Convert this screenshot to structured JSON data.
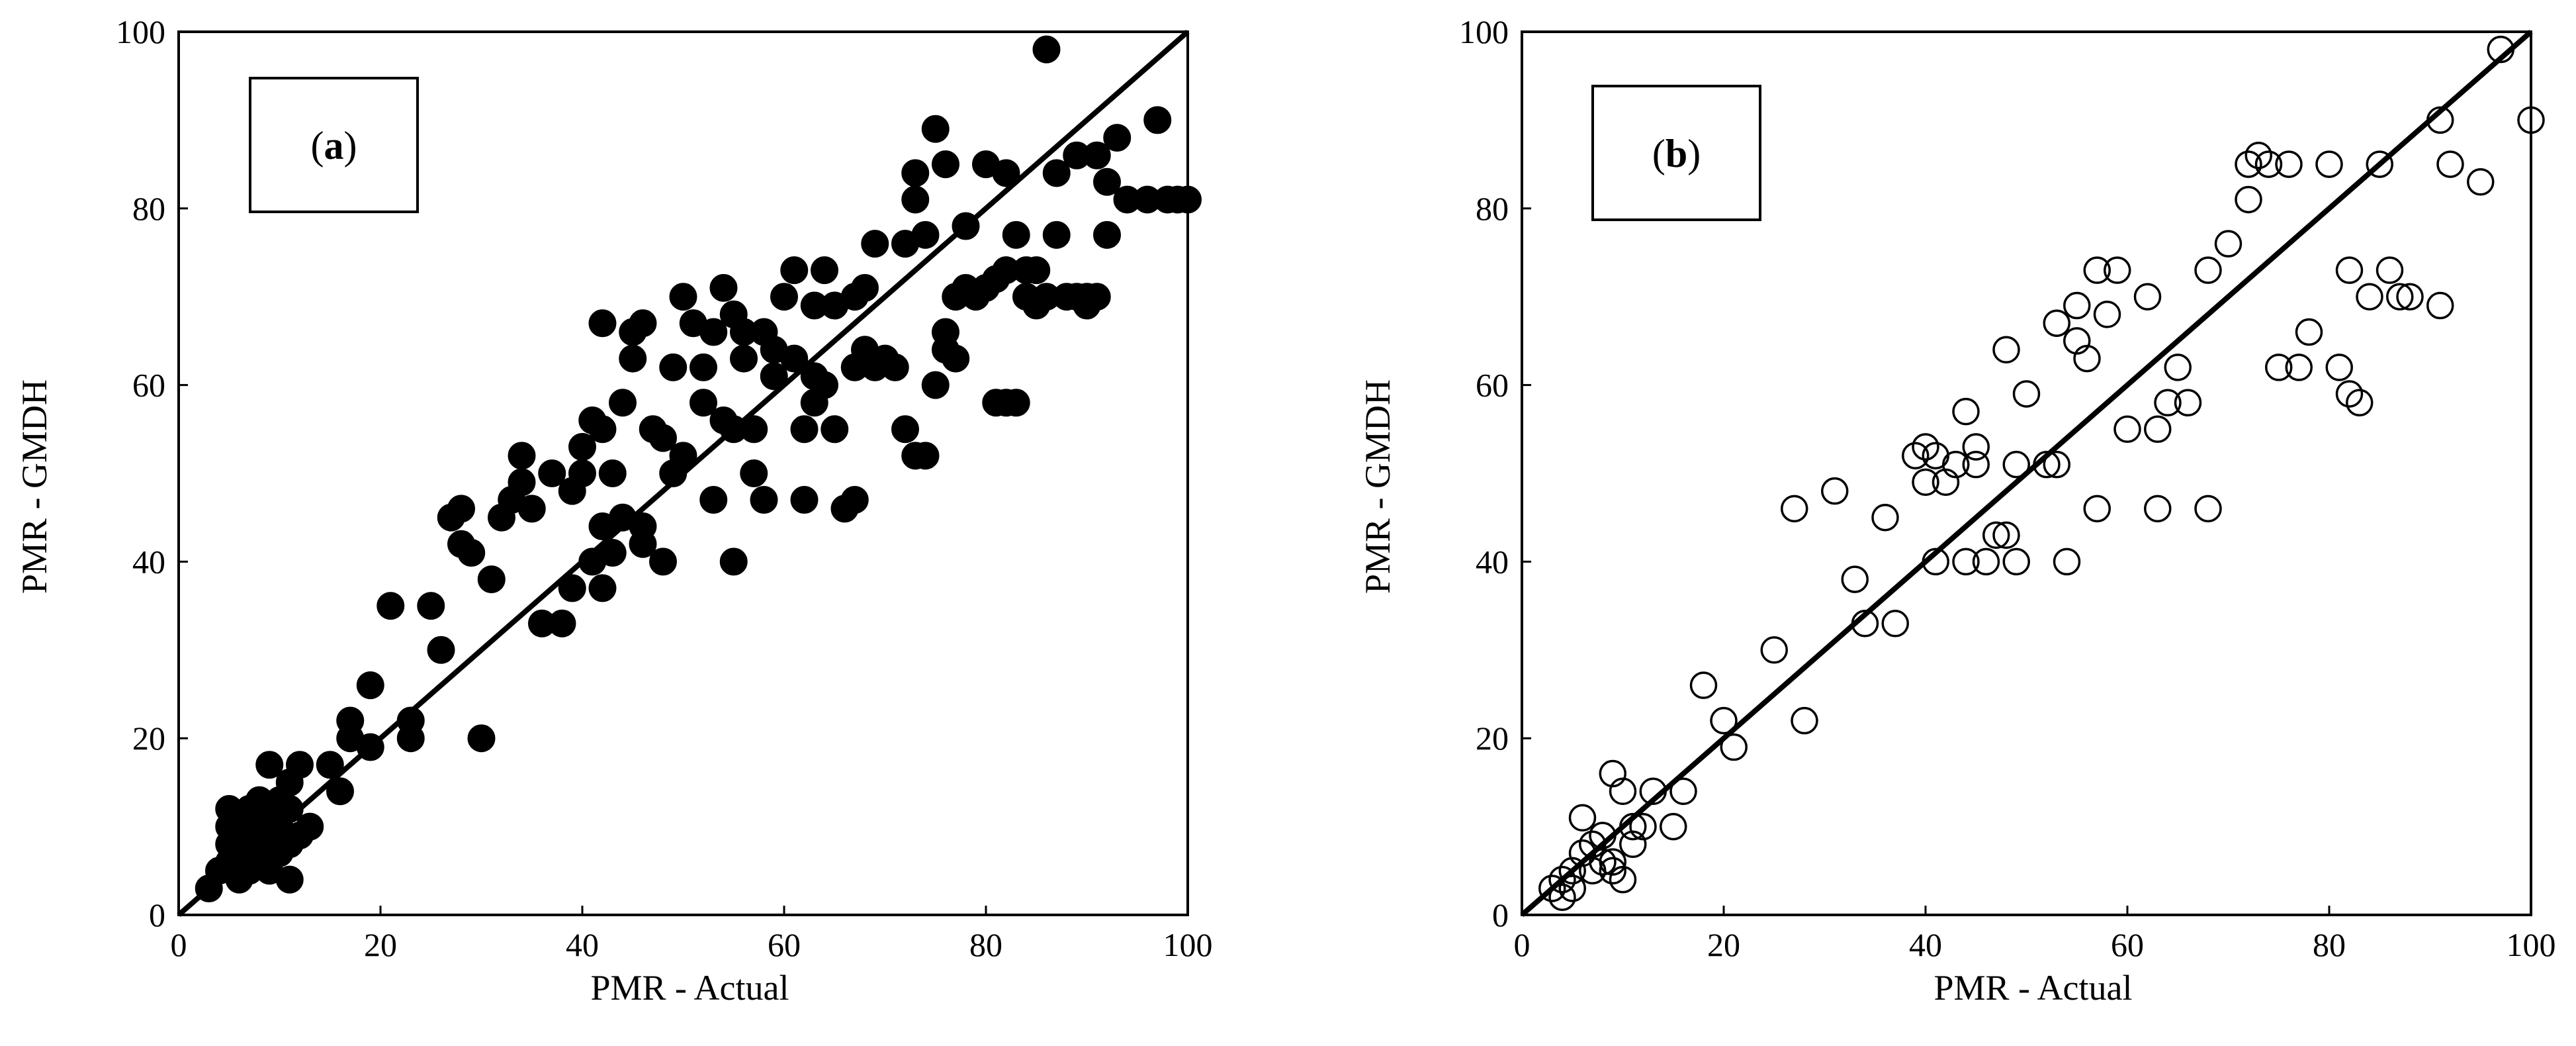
{
  "figure": {
    "panels": [
      {
        "id": "a",
        "label_open": "(",
        "label_letter": "a",
        "label_close": ")"
      },
      {
        "id": "b",
        "label_open": "(",
        "label_letter": "b",
        "label_close": ")"
      }
    ]
  },
  "chart_data": [
    {
      "type": "scatter",
      "panel": "a",
      "marker": "filled-circle",
      "title": "",
      "xlabel": "PMR - Actual",
      "ylabel": "PMR - GMDH",
      "xlim": [
        0,
        100
      ],
      "ylim": [
        0,
        100
      ],
      "xticks": [
        0,
        20,
        40,
        60,
        80,
        100
      ],
      "yticks": [
        0,
        20,
        40,
        60,
        80,
        100
      ],
      "reference_line": {
        "x": [
          0,
          100
        ],
        "y": [
          0,
          100
        ]
      },
      "points": [
        [
          3,
          3
        ],
        [
          4,
          5
        ],
        [
          5,
          6
        ],
        [
          5,
          8
        ],
        [
          5,
          10
        ],
        [
          5,
          12
        ],
        [
          6,
          4
        ],
        [
          6,
          7
        ],
        [
          6,
          9
        ],
        [
          6,
          11
        ],
        [
          7,
          5
        ],
        [
          7,
          8
        ],
        [
          7,
          10
        ],
        [
          7,
          12
        ],
        [
          8,
          6
        ],
        [
          8,
          8
        ],
        [
          8,
          10
        ],
        [
          8,
          13
        ],
        [
          9,
          5
        ],
        [
          9,
          9
        ],
        [
          9,
          12
        ],
        [
          9,
          17
        ],
        [
          10,
          7
        ],
        [
          10,
          10
        ],
        [
          10,
          13
        ],
        [
          11,
          4
        ],
        [
          11,
          8
        ],
        [
          11,
          12
        ],
        [
          11,
          15
        ],
        [
          12,
          9
        ],
        [
          12,
          17
        ],
        [
          13,
          10
        ],
        [
          15,
          17
        ],
        [
          16,
          14
        ],
        [
          17,
          20
        ],
        [
          17,
          22
        ],
        [
          19,
          19
        ],
        [
          19,
          26
        ],
        [
          21,
          35
        ],
        [
          23,
          20
        ],
        [
          23,
          22
        ],
        [
          25,
          35
        ],
        [
          26,
          30
        ],
        [
          27,
          45
        ],
        [
          28,
          42
        ],
        [
          28,
          46
        ],
        [
          29,
          41
        ],
        [
          30,
          20
        ],
        [
          31,
          38
        ],
        [
          32,
          45
        ],
        [
          33,
          47
        ],
        [
          34,
          49
        ],
        [
          34,
          52
        ],
        [
          35,
          46
        ],
        [
          36,
          33
        ],
        [
          37,
          50
        ],
        [
          38,
          33
        ],
        [
          39,
          37
        ],
        [
          39,
          48
        ],
        [
          40,
          50
        ],
        [
          40,
          53
        ],
        [
          41,
          56
        ],
        [
          41,
          40
        ],
        [
          42,
          37
        ],
        [
          42,
          44
        ],
        [
          42,
          55
        ],
        [
          42,
          67
        ],
        [
          43,
          50
        ],
        [
          43,
          41
        ],
        [
          44,
          58
        ],
        [
          44,
          45
        ],
        [
          45,
          63
        ],
        [
          45,
          66
        ],
        [
          46,
          42
        ],
        [
          46,
          44
        ],
        [
          46,
          67
        ],
        [
          47,
          55
        ],
        [
          48,
          40
        ],
        [
          48,
          54
        ],
        [
          49,
          62
        ],
        [
          49,
          50
        ],
        [
          50,
          70
        ],
        [
          50,
          52
        ],
        [
          51,
          67
        ],
        [
          52,
          58
        ],
        [
          52,
          62
        ],
        [
          53,
          47
        ],
        [
          53,
          66
        ],
        [
          54,
          71
        ],
        [
          54,
          56
        ],
        [
          55,
          40
        ],
        [
          55,
          55
        ],
        [
          55,
          68
        ],
        [
          56,
          63
        ],
        [
          56,
          66
        ],
        [
          57,
          50
        ],
        [
          57,
          55
        ],
        [
          58,
          47
        ],
        [
          58,
          66
        ],
        [
          59,
          61
        ],
        [
          59,
          64
        ],
        [
          60,
          70
        ],
        [
          61,
          63
        ],
        [
          61,
          73
        ],
        [
          62,
          55
        ],
        [
          62,
          47
        ],
        [
          63,
          58
        ],
        [
          63,
          69
        ],
        [
          63,
          61
        ],
        [
          64,
          73
        ],
        [
          64,
          60
        ],
        [
          65,
          55
        ],
        [
          65,
          69
        ],
        [
          66,
          46
        ],
        [
          67,
          47
        ],
        [
          67,
          62
        ],
        [
          67,
          70
        ],
        [
          68,
          64
        ],
        [
          68,
          71
        ],
        [
          69,
          62
        ],
        [
          69,
          76
        ],
        [
          70,
          63
        ],
        [
          71,
          62
        ],
        [
          72,
          55
        ],
        [
          72,
          76
        ],
        [
          73,
          52
        ],
        [
          73,
          81
        ],
        [
          73,
          84
        ],
        [
          74,
          52
        ],
        [
          74,
          77
        ],
        [
          75,
          60
        ],
        [
          75,
          89
        ],
        [
          76,
          64
        ],
        [
          76,
          66
        ],
        [
          76,
          85
        ],
        [
          77,
          63
        ],
        [
          77,
          70
        ],
        [
          78,
          78
        ],
        [
          78,
          71
        ],
        [
          79,
          70
        ],
        [
          80,
          85
        ],
        [
          80,
          71
        ],
        [
          81,
          58
        ],
        [
          81,
          72
        ],
        [
          82,
          58
        ],
        [
          82,
          84
        ],
        [
          82,
          73
        ],
        [
          83,
          58
        ],
        [
          83,
          77
        ],
        [
          84,
          73
        ],
        [
          84,
          70
        ],
        [
          85,
          69
        ],
        [
          85,
          73
        ],
        [
          86,
          98
        ],
        [
          86,
          70
        ],
        [
          87,
          84
        ],
        [
          87,
          77
        ],
        [
          88,
          70
        ],
        [
          89,
          86
        ],
        [
          89,
          70
        ],
        [
          90,
          70
        ],
        [
          90,
          69
        ],
        [
          91,
          70
        ],
        [
          91,
          86
        ],
        [
          92,
          83
        ],
        [
          92,
          77
        ],
        [
          93,
          88
        ],
        [
          94,
          81
        ],
        [
          96,
          81
        ],
        [
          97,
          90
        ],
        [
          98,
          81
        ],
        [
          99,
          81
        ],
        [
          100,
          81
        ]
      ]
    },
    {
      "type": "scatter",
      "panel": "b",
      "marker": "open-circle",
      "title": "",
      "xlabel": "PMR - Actual",
      "ylabel": "PMR - GMDH",
      "xlim": [
        0,
        100
      ],
      "ylim": [
        0,
        100
      ],
      "xticks": [
        0,
        20,
        40,
        60,
        80,
        100
      ],
      "yticks": [
        0,
        20,
        40,
        60,
        80,
        100
      ],
      "reference_line": {
        "x": [
          0,
          100
        ],
        "y": [
          0,
          100
        ]
      },
      "points": [
        [
          3,
          3
        ],
        [
          4,
          4
        ],
        [
          4,
          2
        ],
        [
          5,
          5
        ],
        [
          5,
          3
        ],
        [
          6,
          7
        ],
        [
          6,
          11
        ],
        [
          7,
          8
        ],
        [
          7,
          5
        ],
        [
          8,
          6
        ],
        [
          8,
          9
        ],
        [
          9,
          6
        ],
        [
          9,
          5
        ],
        [
          9,
          16
        ],
        [
          10,
          4
        ],
        [
          10,
          14
        ],
        [
          11,
          8
        ],
        [
          11,
          10
        ],
        [
          12,
          10
        ],
        [
          13,
          14
        ],
        [
          15,
          10
        ],
        [
          16,
          14
        ],
        [
          18,
          26
        ],
        [
          20,
          22
        ],
        [
          21,
          19
        ],
        [
          25,
          30
        ],
        [
          27,
          46
        ],
        [
          28,
          22
        ],
        [
          31,
          48
        ],
        [
          33,
          38
        ],
        [
          34,
          33
        ],
        [
          36,
          45
        ],
        [
          37,
          33
        ],
        [
          39,
          52
        ],
        [
          40,
          53
        ],
        [
          40,
          49
        ],
        [
          41,
          52
        ],
        [
          41,
          40
        ],
        [
          42,
          49
        ],
        [
          43,
          51
        ],
        [
          44,
          57
        ],
        [
          44,
          40
        ],
        [
          45,
          53
        ],
        [
          45,
          51
        ],
        [
          46,
          40
        ],
        [
          47,
          43
        ],
        [
          48,
          43
        ],
        [
          48,
          64
        ],
        [
          49,
          40
        ],
        [
          49,
          51
        ],
        [
          50,
          59
        ],
        [
          52,
          51
        ],
        [
          53,
          51
        ],
        [
          53,
          67
        ],
        [
          54,
          40
        ],
        [
          55,
          69
        ],
        [
          55,
          65
        ],
        [
          56,
          63
        ],
        [
          57,
          46
        ],
        [
          57,
          73
        ],
        [
          58,
          68
        ],
        [
          59,
          73
        ],
        [
          60,
          55
        ],
        [
          62,
          70
        ],
        [
          63,
          46
        ],
        [
          63,
          55
        ],
        [
          64,
          58
        ],
        [
          65,
          62
        ],
        [
          66,
          58
        ],
        [
          68,
          73
        ],
        [
          68,
          46
        ],
        [
          70,
          76
        ],
        [
          72,
          81
        ],
        [
          72,
          85
        ],
        [
          73,
          86
        ],
        [
          74,
          85
        ],
        [
          75,
          62
        ],
        [
          76,
          85
        ],
        [
          77,
          62
        ],
        [
          78,
          66
        ],
        [
          80,
          85
        ],
        [
          81,
          62
        ],
        [
          82,
          73
        ],
        [
          82,
          59
        ],
        [
          83,
          58
        ],
        [
          84,
          70
        ],
        [
          85,
          85
        ],
        [
          86,
          73
        ],
        [
          87,
          70
        ],
        [
          88,
          70
        ],
        [
          91,
          90
        ],
        [
          91,
          69
        ],
        [
          92,
          85
        ],
        [
          95,
          83
        ],
        [
          97,
          98
        ],
        [
          100,
          90
        ]
      ]
    }
  ]
}
